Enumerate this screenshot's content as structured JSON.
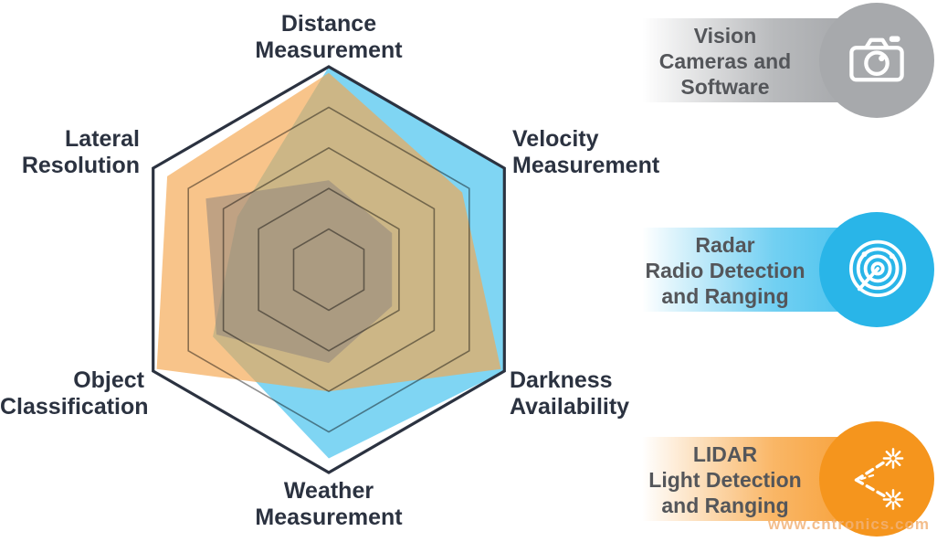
{
  "chart_data": {
    "type": "radar",
    "title": "",
    "axes": [
      {
        "id": "distance",
        "lines": [
          "Distance",
          "Measurement"
        ]
      },
      {
        "id": "velocity",
        "lines": [
          "Velocity",
          "Measurement"
        ]
      },
      {
        "id": "darkness",
        "lines": [
          "Darkness",
          "Availability"
        ]
      },
      {
        "id": "weather",
        "lines": [
          "Weather",
          "Measurement"
        ]
      },
      {
        "id": "object",
        "lines": [
          "Object",
          "Classification"
        ]
      },
      {
        "id": "lateral",
        "lines": [
          "Lateral",
          "Resolution"
        ]
      }
    ],
    "scale": {
      "min": 0,
      "max": 5,
      "gridlines": [
        1,
        2,
        3,
        4,
        5
      ],
      "tick_labels_visible": false
    },
    "series": [
      {
        "id": "vision",
        "name": "Vision Cameras and Software",
        "values": [
          2.2,
          1.8,
          1.8,
          2.3,
          3.2,
          3.5
        ],
        "fill": "#8C827C",
        "fill_opacity": 0.52
      },
      {
        "id": "radar",
        "name": "Radar Radio Detection and Ranging",
        "values": [
          5,
          5,
          5,
          4.65,
          3.3,
          2.6
        ],
        "fill": "#5BC9EF",
        "fill_opacity": 0.78
      },
      {
        "id": "lidar",
        "name": "LIDAR Light Detection and Ranging",
        "values": [
          4.85,
          3.8,
          4.9,
          3.0,
          4.9,
          4.6
        ],
        "fill": "#F5A54D",
        "fill_opacity": 0.66
      }
    ],
    "draw_order": [
      1,
      2,
      0
    ],
    "grid_color": "#8F8F8F",
    "outline_color": "#2B3240",
    "legend_position": "right"
  },
  "legend": {
    "items": [
      {
        "id": "vision",
        "lines": [
          "Vision",
          "Cameras and",
          "Software"
        ],
        "circle_color": "#A7A9AC",
        "bar_color": "#A7A9AC",
        "icon": "camera-icon"
      },
      {
        "id": "radar",
        "lines": [
          "Radar",
          "Radio Detection",
          "and Ranging"
        ],
        "circle_color": "#29B5E8",
        "bar_color": "#4FC4EF",
        "icon": "radar-icon"
      },
      {
        "id": "lidar",
        "lines": [
          "LIDAR",
          "Light Detection",
          "and Ranging"
        ],
        "circle_color": "#F5951D",
        "bar_color": "#F8A440",
        "icon": "lidar-icon"
      }
    ]
  },
  "watermark": {
    "text": "www.cntronics.com",
    "color": "#F2B277"
  }
}
